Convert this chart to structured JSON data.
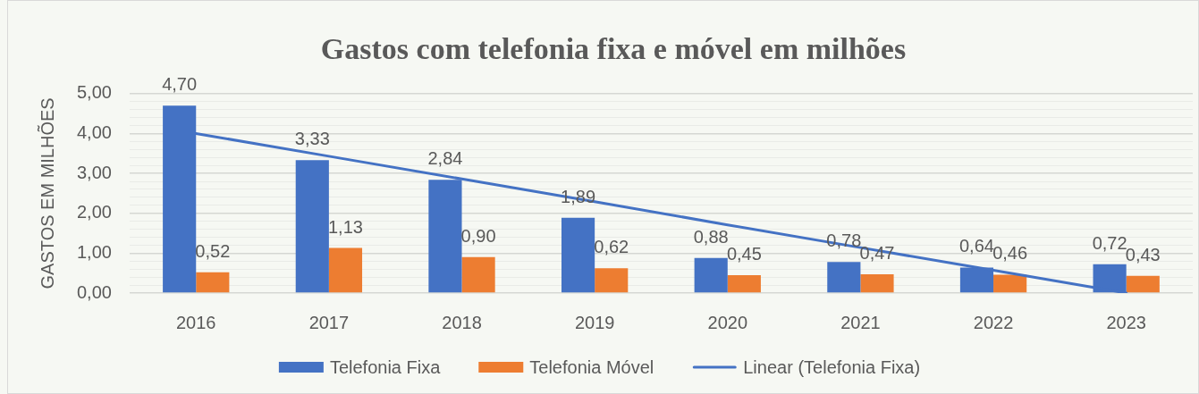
{
  "chart_data": {
    "type": "bar",
    "title": "Gastos com telefonia fixa e móvel em milhões",
    "ylabel": "GASTOS EM MILHÕES",
    "categories": [
      "2016",
      "2017",
      "2018",
      "2019",
      "2020",
      "2021",
      "2022",
      "2023"
    ],
    "series": [
      {
        "name": "Telefonia Fixa",
        "color": "#4472c4",
        "values": [
          4.7,
          3.33,
          2.84,
          1.89,
          0.88,
          0.78,
          0.64,
          0.72
        ],
        "value_labels": [
          "4,70",
          "3,33",
          "2,84",
          "1,89",
          "0,88",
          "0,78",
          "0,64",
          "0,72"
        ]
      },
      {
        "name": "Telefonia Móvel",
        "color": "#ed7d31",
        "values": [
          0.52,
          1.13,
          0.9,
          0.62,
          0.45,
          0.47,
          0.46,
          0.43
        ],
        "value_labels": [
          "0,52",
          "1,13",
          "0,90",
          "0,62",
          "0,45",
          "0,47",
          "0,46",
          "0,43"
        ]
      },
      {
        "name": "Linear (Telefonia Fixa)",
        "type": "line",
        "color": "#4472c4",
        "values": [
          4.0,
          3.43,
          2.86,
          2.29,
          1.71,
          1.14,
          0.57,
          0.0
        ]
      }
    ],
    "ylim": [
      0,
      5
    ],
    "yticks": [
      {
        "value": 0,
        "label": "0,00"
      },
      {
        "value": 0.2,
        "label": null
      },
      {
        "value": 0.4,
        "label": null
      },
      {
        "value": 0.6,
        "label": null
      },
      {
        "value": 0.8,
        "label": null
      },
      {
        "value": 1,
        "label": "1,00"
      },
      {
        "value": 1.2,
        "label": null
      },
      {
        "value": 1.4,
        "label": null
      },
      {
        "value": 1.6,
        "label": null
      },
      {
        "value": 1.8,
        "label": null
      },
      {
        "value": 2,
        "label": "2,00"
      },
      {
        "value": 2.2,
        "label": null
      },
      {
        "value": 2.4,
        "label": null
      },
      {
        "value": 2.6,
        "label": null
      },
      {
        "value": 2.8,
        "label": null
      },
      {
        "value": 3,
        "label": "3,00"
      },
      {
        "value": 3.2,
        "label": null
      },
      {
        "value": 3.4,
        "label": null
      },
      {
        "value": 3.6,
        "label": null
      },
      {
        "value": 3.8,
        "label": null
      },
      {
        "value": 4,
        "label": "4,00"
      },
      {
        "value": 4.2,
        "label": null
      },
      {
        "value": 4.4,
        "label": null
      },
      {
        "value": 4.6,
        "label": null
      },
      {
        "value": 4.8,
        "label": null
      },
      {
        "value": 5,
        "label": "5,00"
      }
    ],
    "grid": "y",
    "legend": "bottom"
  }
}
